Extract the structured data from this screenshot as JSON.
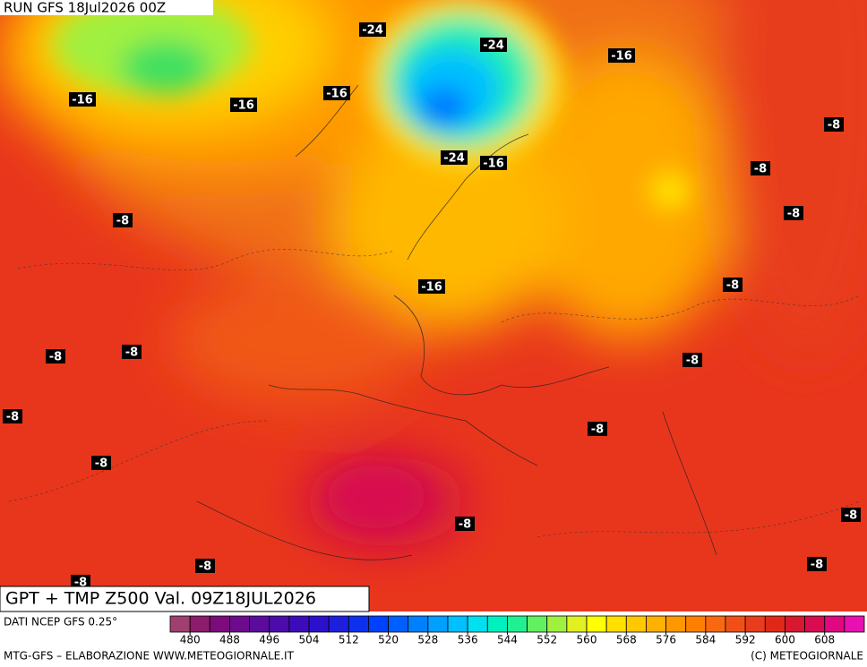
{
  "header": {
    "run": "RUN GFS 18Jul2026 00Z"
  },
  "contour_labels": [
    -24,
    -24,
    -16,
    -16,
    -16,
    -16,
    -8,
    -24,
    -16,
    -8,
    -8,
    -8,
    -16,
    -8,
    -8,
    -8,
    -8,
    -8,
    -8,
    -8,
    -8,
    -8,
    -8,
    -8,
    -8
  ],
  "footer": {
    "title": "GPT + TMP Z500 Val. 09Z18JUL2026",
    "source": "DATI NCEP GFS 0.25°",
    "credits": "MTG-GFS – ELABORAZIONE WWW.METEOGIORNALE.IT",
    "copyright": "(C) METEOGIORNALE"
  },
  "colorbar": {
    "lim": [
      476,
      616
    ],
    "ticks": [
      480,
      488,
      496,
      504,
      512,
      520,
      528,
      536,
      544,
      552,
      560,
      568,
      576,
      584,
      592,
      600,
      608
    ],
    "colors": [
      "#a04070",
      "#8c1c6c",
      "#7c0c7c",
      "#6c0c8c",
      "#5c0c9c",
      "#4c0cac",
      "#3c0cbc",
      "#2c10cc",
      "#1c20dc",
      "#0c30ec",
      "#0040ff",
      "#0060ff",
      "#0080ff",
      "#00a0ff",
      "#00c0ff",
      "#00e0f0",
      "#00f0c0",
      "#20f090",
      "#60f060",
      "#a0f040",
      "#e0f020",
      "#ffff00",
      "#ffe000",
      "#ffc800",
      "#ffb000",
      "#ff9800",
      "#ff8000",
      "#f86810",
      "#f05018",
      "#e83c1c",
      "#e02818",
      "#d81830",
      "#d80c50",
      "#e00880",
      "#e810b0"
    ]
  }
}
